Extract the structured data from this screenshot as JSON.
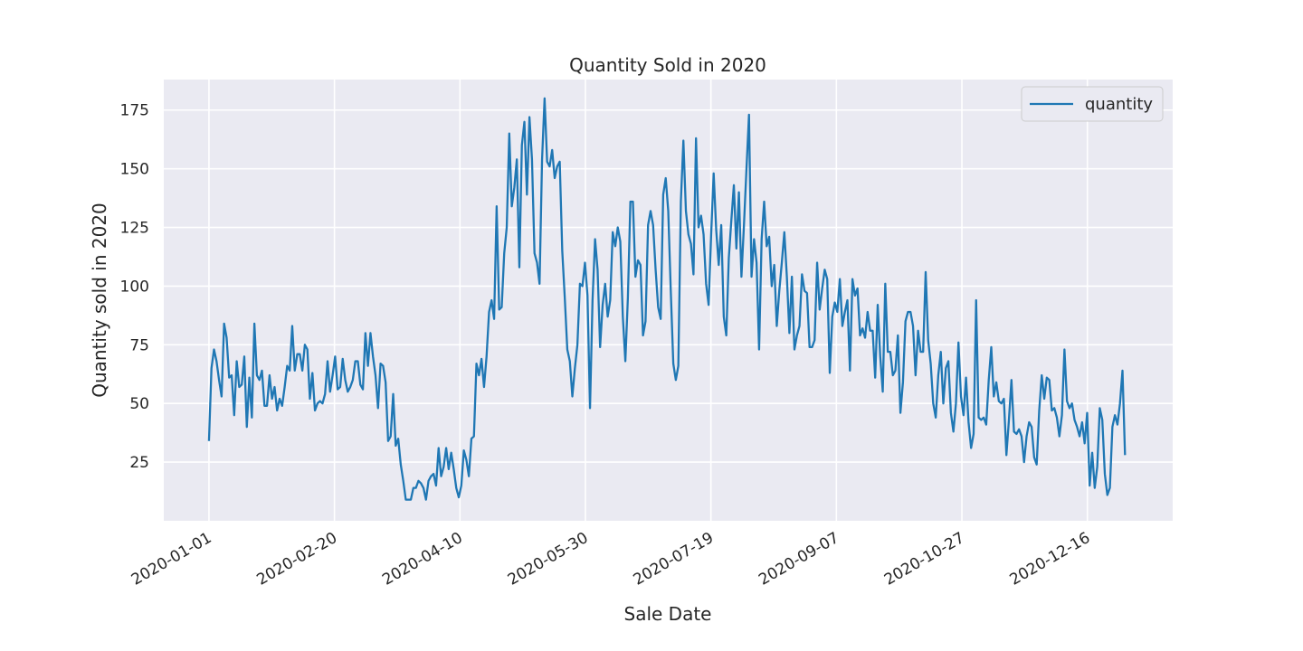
{
  "chart_data": {
    "type": "line",
    "title": "Quantity Sold in 2020",
    "xlabel": "Sale Date",
    "ylabel": "Quantity sold in 2020",
    "x_start": "2020-01-01",
    "x_end": "2020-12-31",
    "xlim": [
      "2019-12-14",
      "2021-01-19"
    ],
    "ylim": [
      0,
      188
    ],
    "x_ticks": [
      "2020-01-01",
      "2020-02-20",
      "2020-04-10",
      "2020-05-30",
      "2020-07-19",
      "2020-09-07",
      "2020-10-27",
      "2020-12-16"
    ],
    "y_ticks": [
      25,
      50,
      75,
      100,
      125,
      150,
      175
    ],
    "grid": true,
    "legend_position": "top-right",
    "series": [
      {
        "name": "quantity",
        "color": "#1f77b4",
        "values": [
          34,
          65,
          73,
          68,
          60,
          53,
          84,
          78,
          61,
          62,
          45,
          68,
          57,
          58,
          70,
          40,
          61,
          44,
          84,
          62,
          60,
          64,
          49,
          49,
          62,
          52,
          57,
          47,
          52,
          49,
          57,
          66,
          64,
          83,
          64,
          71,
          71,
          64,
          75,
          73,
          52,
          63,
          47,
          50,
          51,
          50,
          54,
          68,
          55,
          62,
          70,
          56,
          57,
          69,
          60,
          55,
          57,
          60,
          68,
          68,
          58,
          56,
          80,
          66,
          80,
          70,
          62,
          48,
          67,
          66,
          59,
          34,
          36,
          54,
          32,
          35,
          24,
          17,
          9,
          9,
          9,
          14,
          14,
          17,
          16,
          14,
          9,
          17,
          19,
          20,
          15,
          31,
          19,
          23,
          31,
          22,
          29,
          22,
          14,
          10,
          15,
          30,
          26,
          19,
          35,
          36,
          67,
          62,
          69,
          57,
          70,
          89,
          94,
          86,
          134,
          90,
          91,
          114,
          125,
          165,
          134,
          142,
          154,
          108,
          160,
          170,
          139,
          172,
          154,
          114,
          110,
          101,
          154,
          180,
          153,
          151,
          158,
          146,
          151,
          153,
          115,
          95,
          73,
          68,
          53,
          65,
          75,
          101,
          100,
          110,
          96,
          48,
          94,
          120,
          107,
          74,
          92,
          101,
          87,
          94,
          123,
          117,
          125,
          119,
          87,
          68,
          95,
          136,
          136,
          104,
          111,
          109,
          79,
          85,
          126,
          132,
          126,
          107,
          91,
          86,
          139,
          146,
          132,
          98,
          67,
          60,
          66,
          136,
          162,
          132,
          122,
          118,
          105,
          163,
          125,
          130,
          122,
          101,
          92,
          122,
          148,
          124,
          109,
          126,
          87,
          79,
          112,
          128,
          143,
          116,
          140,
          104,
          126,
          150,
          173,
          104,
          120,
          110,
          73,
          120,
          136,
          117,
          121,
          100,
          109,
          83,
          98,
          110,
          123,
          104,
          80,
          104,
          73,
          79,
          83,
          105,
          98,
          97,
          74,
          74,
          77,
          110,
          90,
          99,
          107,
          103,
          63,
          87,
          93,
          89,
          103,
          83,
          89,
          94,
          64,
          103,
          96,
          99,
          79,
          82,
          78,
          89,
          81,
          81,
          61,
          92,
          70,
          55,
          101,
          72,
          72,
          62,
          64,
          79,
          46,
          59,
          85,
          89,
          89,
          83,
          62,
          81,
          72,
          72,
          106,
          77,
          67,
          50,
          44,
          62,
          72,
          50,
          65,
          68,
          46,
          38,
          50,
          76,
          53,
          45,
          61,
          42,
          31,
          37,
          94,
          44,
          43,
          44,
          41,
          60,
          74,
          53,
          59,
          51,
          50,
          52,
          28,
          43,
          60,
          38,
          37,
          39,
          36,
          25,
          36,
          42,
          40,
          27,
          24,
          47,
          62,
          52,
          61,
          60,
          47,
          48,
          44,
          36,
          45,
          73,
          51,
          48,
          50,
          43,
          40,
          36,
          42,
          33,
          46,
          15,
          29,
          14,
          23,
          48,
          43,
          20,
          11,
          14,
          40,
          45,
          41,
          50,
          64,
          28
        ]
      }
    ]
  }
}
